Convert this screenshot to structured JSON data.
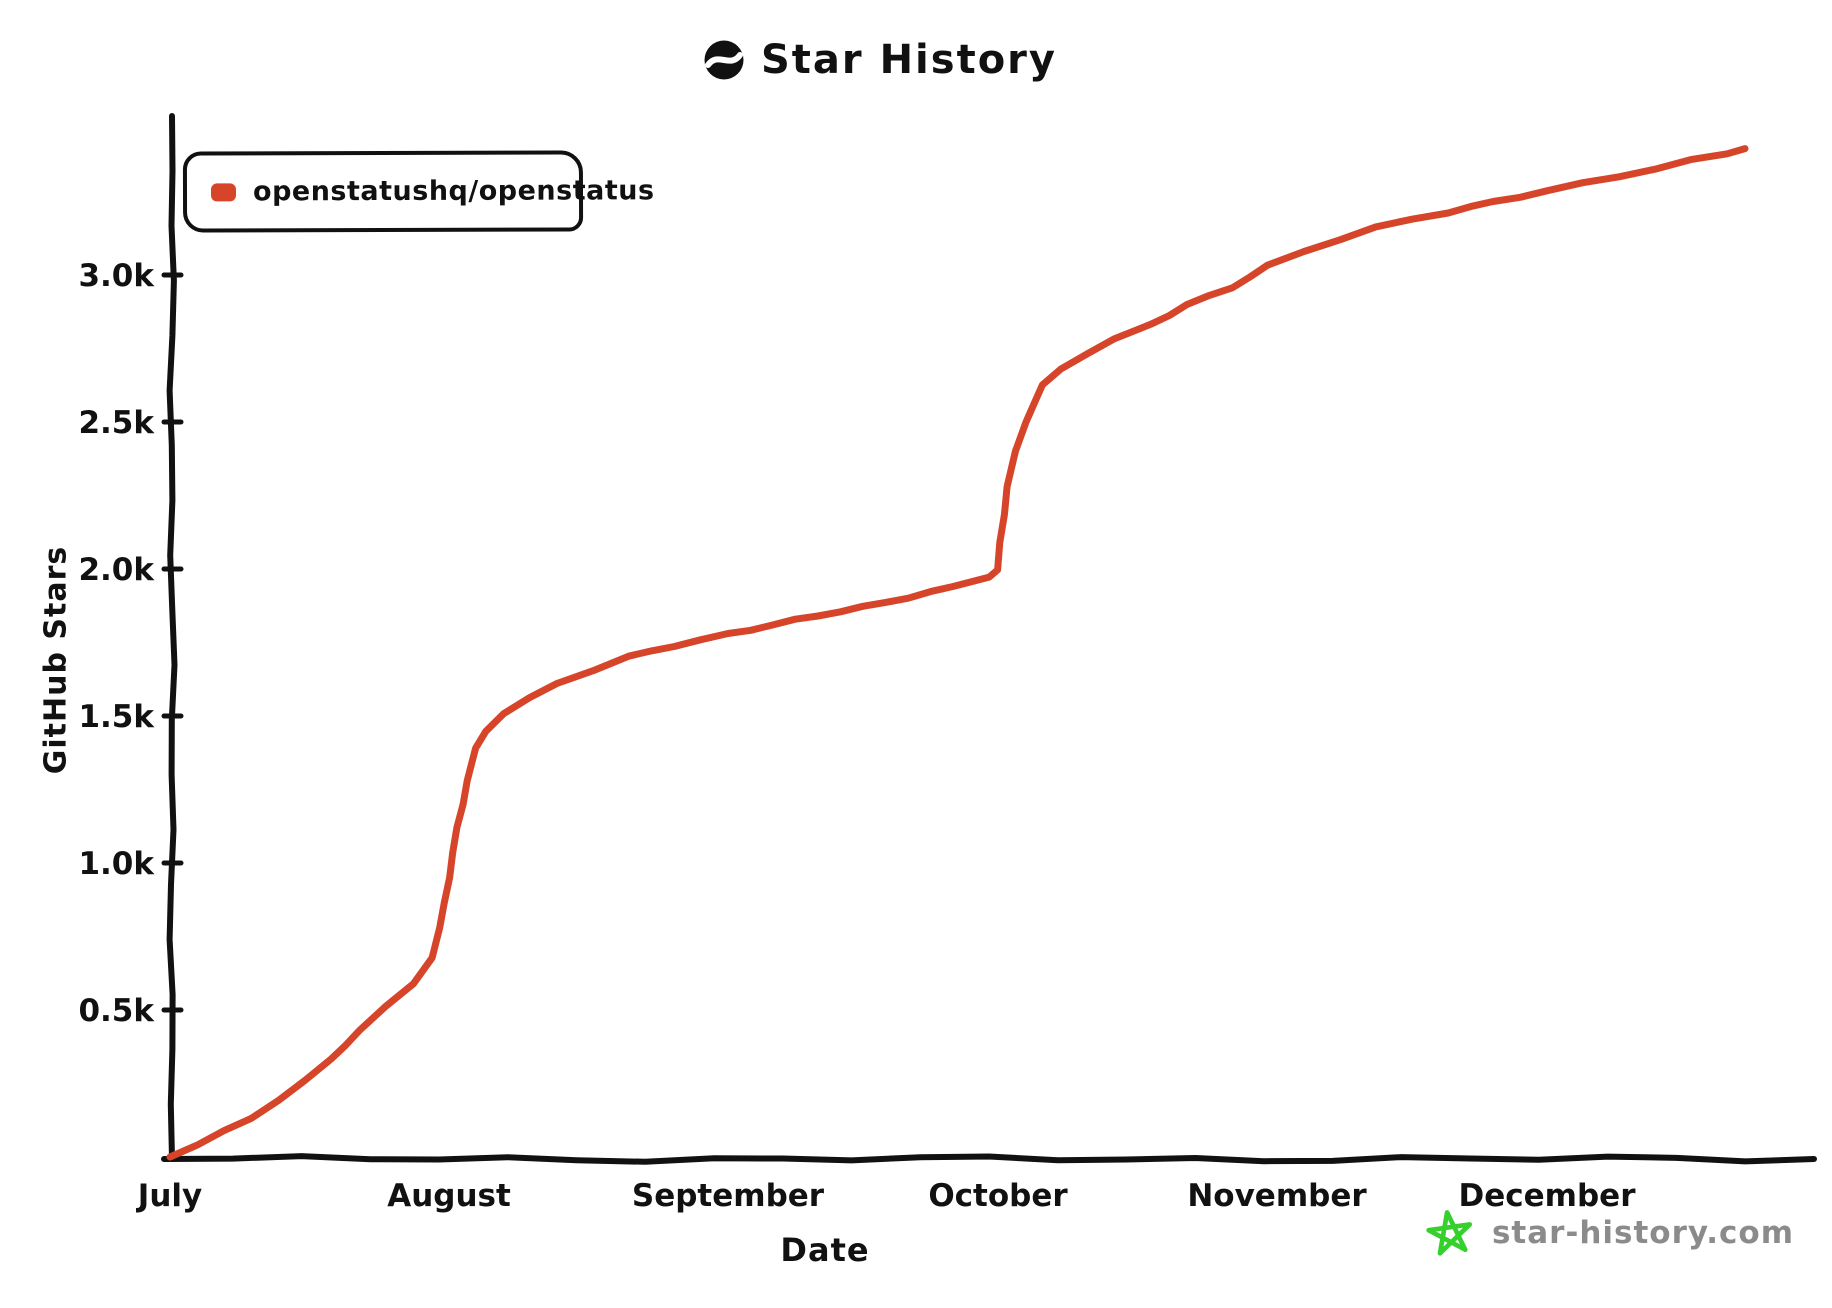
{
  "title": {
    "text": "Star History"
  },
  "legend": {
    "label": "openstatushq/openstatus",
    "marker_color": "#d6452a"
  },
  "watermark": {
    "text": "star-history.com",
    "icon_color": "#35d02c",
    "text_color": "#8b8b8b"
  },
  "axes": {
    "x_label": "Date",
    "y_label": "GitHub Stars",
    "x_tick_labels": [
      "July",
      "August",
      "September",
      "October",
      "November",
      "December"
    ],
    "y_tick_labels": [
      "0.5k",
      "1.0k",
      "1.5k",
      "2.0k",
      "2.5k",
      "3.0k"
    ],
    "y_tick_values": [
      500,
      1000,
      1500,
      2000,
      2500,
      3000
    ],
    "axis_color": "#111111"
  },
  "chart_data": {
    "type": "line",
    "title": "Star History",
    "xlabel": "Date",
    "ylabel": "GitHub Stars",
    "xlim": [
      "Jul 1",
      "Dec 28"
    ],
    "ylim": [
      0,
      3520
    ],
    "grid": false,
    "legend_position": "top-left",
    "series": [
      {
        "name": "openstatushq/openstatus",
        "color": "#d6452a",
        "points": [
          [
            "Jul 1",
            0
          ],
          [
            "Jul 4",
            45
          ],
          [
            "Jul 7",
            90
          ],
          [
            "Jul 10",
            130
          ],
          [
            "Jul 13",
            195
          ],
          [
            "Jul 16",
            260
          ],
          [
            "Jul 19",
            330
          ],
          [
            "Jul 22",
            430
          ],
          [
            "Jul 25",
            510
          ],
          [
            "Jul 28",
            590
          ],
          [
            "Jul 30",
            680
          ],
          [
            "Jul 31",
            780
          ],
          [
            "Aug 1",
            950
          ],
          [
            "Aug 2",
            1120
          ],
          [
            "Aug 3",
            1280
          ],
          [
            "Aug 4",
            1390
          ],
          [
            "Aug 5",
            1450
          ],
          [
            "Aug 7",
            1510
          ],
          [
            "Aug 10",
            1560
          ],
          [
            "Aug 13",
            1610
          ],
          [
            "Aug 17",
            1655
          ],
          [
            "Aug 21",
            1700
          ],
          [
            "Aug 26",
            1740
          ],
          [
            "Sep 1",
            1780
          ],
          [
            "Sep 6",
            1810
          ],
          [
            "Sep 11",
            1840
          ],
          [
            "Sep 16",
            1870
          ],
          [
            "Sep 21",
            1905
          ],
          [
            "Sep 26",
            1940
          ],
          [
            "Sep 30",
            1975
          ],
          [
            "Oct 1",
            1995
          ],
          [
            "Oct 2",
            2280
          ],
          [
            "Oct 3",
            2400
          ],
          [
            "Oct 4",
            2500
          ],
          [
            "Oct 5",
            2570
          ],
          [
            "Oct 6",
            2625
          ],
          [
            "Oct 8",
            2680
          ],
          [
            "Oct 11",
            2735
          ],
          [
            "Oct 14",
            2780
          ],
          [
            "Oct 18",
            2830
          ],
          [
            "Oct 22",
            2900
          ],
          [
            "Oct 27",
            2960
          ],
          [
            "Oct 31",
            3030
          ],
          [
            "Nov 4",
            3080
          ],
          [
            "Nov 8",
            3120
          ],
          [
            "Nov 12",
            3160
          ],
          [
            "Nov 16",
            3190
          ],
          [
            "Nov 20",
            3215
          ],
          [
            "Nov 25",
            3250
          ],
          [
            "Dec 1",
            3285
          ],
          [
            "Dec 5",
            3310
          ],
          [
            "Dec 9",
            3335
          ],
          [
            "Dec 13",
            3360
          ],
          [
            "Dec 17",
            3390
          ],
          [
            "Dec 21",
            3415
          ],
          [
            "Dec 23",
            3430
          ]
        ]
      }
    ]
  }
}
